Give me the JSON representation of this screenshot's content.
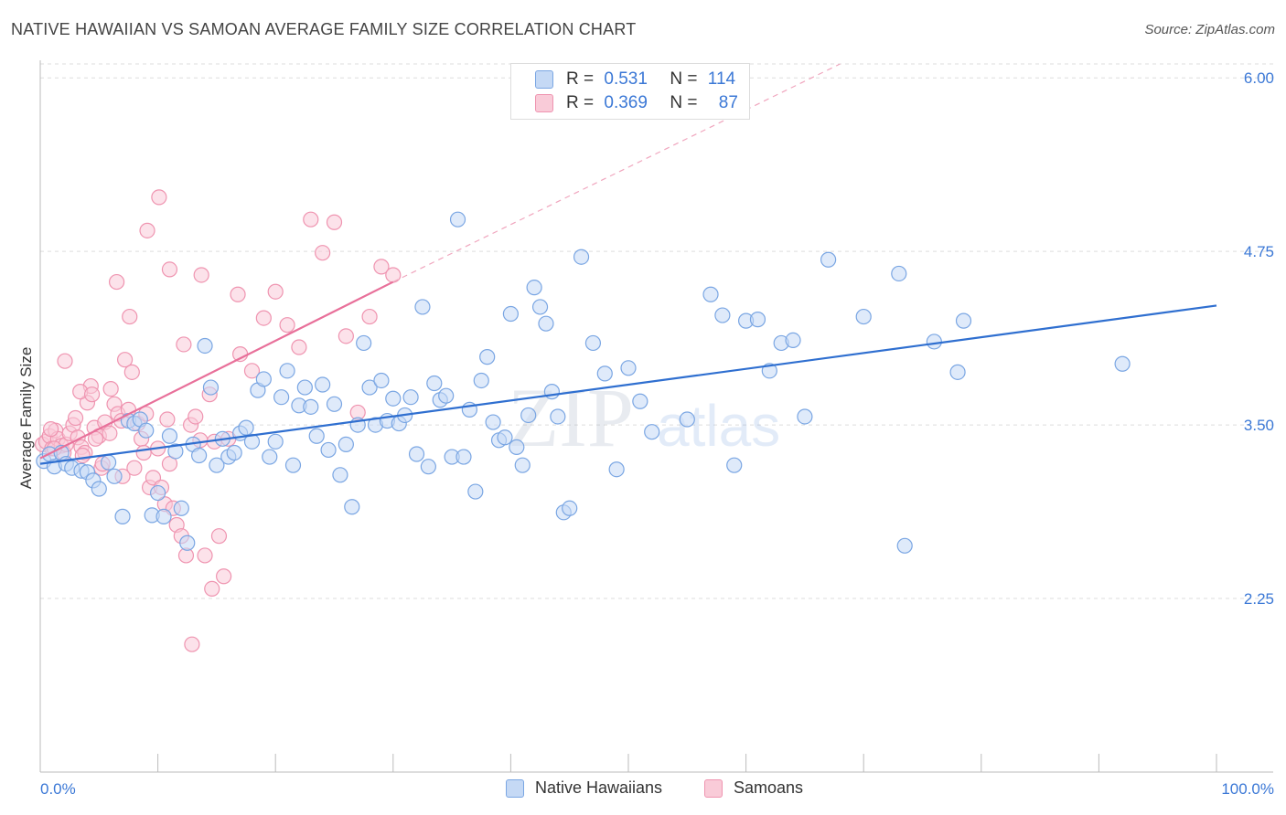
{
  "title": "NATIVE HAWAIIAN VS SAMOAN AVERAGE FAMILY SIZE CORRELATION CHART",
  "source": "Source: ZipAtlas.com",
  "watermark": {
    "zip": "ZIP",
    "atlas": "atlas"
  },
  "legend": {
    "r_label": "R =",
    "n_label": "N =",
    "rows": [
      {
        "r": "0.531",
        "n": "114"
      },
      {
        "r": "0.369",
        "n": "87"
      }
    ]
  },
  "bottom_legend": [
    "Native Hawaiians",
    "Samoans"
  ],
  "colors": {
    "blue_fill": "#c5d9f5",
    "blue_stroke": "#7aa6e3",
    "blue_line": "#2f6fd0",
    "pink_fill": "#f9cbd8",
    "pink_stroke": "#ef94b0",
    "pink_line": "#e8709a",
    "axis_text": "#3b78d6",
    "grid": "#dddddd"
  },
  "chart_data": {
    "type": "scatter",
    "title": "NATIVE HAWAIIAN VS SAMOAN AVERAGE FAMILY SIZE CORRELATION CHART",
    "xlabel": "",
    "ylabel": "Average Family Size",
    "xlim": [
      0,
      100
    ],
    "ylim": [
      1.0,
      6.1
    ],
    "x_tick_labels": [
      "0.0%",
      "100.0%"
    ],
    "y_ticks": [
      2.25,
      3.5,
      4.75,
      6.0
    ],
    "y_tick_labels": [
      "2.25",
      "3.50",
      "4.75",
      "6.00"
    ],
    "series": [
      {
        "name": "Native Hawaiians",
        "r": 0.531,
        "n": 114,
        "trend": {
          "x0": 0,
          "y0": 3.22,
          "x1": 100,
          "y1": 4.36
        },
        "points": [
          [
            0.3,
            3.24
          ],
          [
            0.8,
            3.29
          ],
          [
            1.2,
            3.2
          ],
          [
            1.8,
            3.3
          ],
          [
            2.2,
            3.22
          ],
          [
            2.7,
            3.19
          ],
          [
            3.5,
            3.17
          ],
          [
            4.0,
            3.16
          ],
          [
            4.5,
            3.1
          ],
          [
            5.0,
            3.04
          ],
          [
            5.8,
            3.23
          ],
          [
            6.3,
            3.13
          ],
          [
            7.0,
            2.84
          ],
          [
            7.5,
            3.53
          ],
          [
            8.0,
            3.51
          ],
          [
            8.5,
            3.54
          ],
          [
            9.0,
            3.46
          ],
          [
            9.5,
            2.85
          ],
          [
            10.0,
            3.01
          ],
          [
            10.5,
            2.84
          ],
          [
            11.0,
            3.42
          ],
          [
            11.5,
            3.31
          ],
          [
            12.0,
            2.9
          ],
          [
            12.5,
            2.65
          ],
          [
            13.0,
            3.36
          ],
          [
            13.5,
            3.28
          ],
          [
            14.0,
            4.07
          ],
          [
            14.5,
            3.77
          ],
          [
            15.0,
            3.21
          ],
          [
            15.5,
            3.4
          ],
          [
            16.0,
            3.27
          ],
          [
            16.5,
            3.3
          ],
          [
            17.0,
            3.44
          ],
          [
            17.5,
            3.48
          ],
          [
            18.0,
            3.38
          ],
          [
            18.5,
            3.75
          ],
          [
            19.0,
            3.83
          ],
          [
            19.5,
            3.27
          ],
          [
            20.0,
            3.38
          ],
          [
            20.5,
            3.7
          ],
          [
            21.0,
            3.89
          ],
          [
            21.5,
            3.21
          ],
          [
            22.0,
            3.64
          ],
          [
            22.5,
            3.77
          ],
          [
            23.0,
            3.63
          ],
          [
            23.5,
            3.42
          ],
          [
            24.0,
            3.79
          ],
          [
            24.5,
            3.32
          ],
          [
            25.0,
            3.65
          ],
          [
            25.5,
            3.14
          ],
          [
            26.0,
            3.36
          ],
          [
            26.5,
            2.91
          ],
          [
            27.0,
            3.5
          ],
          [
            27.5,
            4.09
          ],
          [
            28.0,
            3.77
          ],
          [
            28.5,
            3.5
          ],
          [
            29.0,
            3.82
          ],
          [
            29.5,
            3.53
          ],
          [
            30.0,
            3.69
          ],
          [
            30.5,
            3.51
          ],
          [
            31.0,
            3.57
          ],
          [
            31.5,
            3.7
          ],
          [
            32.0,
            3.29
          ],
          [
            32.5,
            4.35
          ],
          [
            33.0,
            3.2
          ],
          [
            33.5,
            3.8
          ],
          [
            34.0,
            3.68
          ],
          [
            34.5,
            3.71
          ],
          [
            35.0,
            3.27
          ],
          [
            35.5,
            4.98
          ],
          [
            36.0,
            3.27
          ],
          [
            36.5,
            3.61
          ],
          [
            37.0,
            3.02
          ],
          [
            37.5,
            3.82
          ],
          [
            38.0,
            3.99
          ],
          [
            38.5,
            3.52
          ],
          [
            39.0,
            3.39
          ],
          [
            39.5,
            3.41
          ],
          [
            40.0,
            4.3
          ],
          [
            40.5,
            3.34
          ],
          [
            41.0,
            3.21
          ],
          [
            41.5,
            3.57
          ],
          [
            42.0,
            4.49
          ],
          [
            42.5,
            4.35
          ],
          [
            43.0,
            4.23
          ],
          [
            43.5,
            3.74
          ],
          [
            44.0,
            3.56
          ],
          [
            44.5,
            2.87
          ],
          [
            45.0,
            2.9
          ],
          [
            46.0,
            4.71
          ],
          [
            47.0,
            4.09
          ],
          [
            48.0,
            3.87
          ],
          [
            49.0,
            3.18
          ],
          [
            50.0,
            3.91
          ],
          [
            51.0,
            3.67
          ],
          [
            52.0,
            3.45
          ],
          [
            55.0,
            3.54
          ],
          [
            57.0,
            4.44
          ],
          [
            58.0,
            4.29
          ],
          [
            59.0,
            3.21
          ],
          [
            60.0,
            4.25
          ],
          [
            61.0,
            4.26
          ],
          [
            62.0,
            3.89
          ],
          [
            63.0,
            4.09
          ],
          [
            64.0,
            4.11
          ],
          [
            65.0,
            3.56
          ],
          [
            67.0,
            4.69
          ],
          [
            70.0,
            4.28
          ],
          [
            73.0,
            4.59
          ],
          [
            73.5,
            2.63
          ],
          [
            76.0,
            4.1
          ],
          [
            78.0,
            3.88
          ],
          [
            78.5,
            4.25
          ],
          [
            92.0,
            3.94
          ]
        ]
      },
      {
        "name": "Samoans",
        "r": 0.369,
        "n": 87,
        "trend": {
          "x0": 0,
          "y0": 3.26,
          "x1": 30,
          "y1": 4.53
        },
        "trend_extended": {
          "x0": 30,
          "y0": 4.53,
          "x1": 68,
          "y1": 6.1
        },
        "points": [
          [
            0.2,
            3.36
          ],
          [
            0.5,
            3.38
          ],
          [
            0.8,
            3.42
          ],
          [
            1.0,
            3.33
          ],
          [
            1.3,
            3.46
          ],
          [
            1.5,
            3.4
          ],
          [
            1.8,
            3.35
          ],
          [
            2.0,
            3.3
          ],
          [
            2.2,
            3.36
          ],
          [
            2.5,
            3.44
          ],
          [
            2.8,
            3.5
          ],
          [
            3.0,
            3.55
          ],
          [
            3.2,
            3.41
          ],
          [
            3.5,
            3.34
          ],
          [
            3.8,
            3.3
          ],
          [
            4.0,
            3.66
          ],
          [
            4.3,
            3.78
          ],
          [
            4.6,
            3.48
          ],
          [
            5.0,
            3.42
          ],
          [
            5.2,
            3.19
          ],
          [
            5.5,
            3.52
          ],
          [
            6.0,
            3.76
          ],
          [
            6.3,
            3.65
          ],
          [
            6.6,
            3.58
          ],
          [
            6.9,
            3.53
          ],
          [
            7.2,
            3.97
          ],
          [
            7.5,
            3.61
          ],
          [
            7.8,
            3.88
          ],
          [
            8.0,
            3.19
          ],
          [
            8.3,
            3.51
          ],
          [
            8.6,
            3.4
          ],
          [
            9.0,
            3.58
          ],
          [
            9.3,
            3.05
          ],
          [
            9.6,
            3.12
          ],
          [
            10.0,
            3.33
          ],
          [
            10.3,
            3.05
          ],
          [
            10.6,
            2.93
          ],
          [
            11.0,
            3.22
          ],
          [
            11.3,
            2.9
          ],
          [
            11.6,
            2.78
          ],
          [
            12.0,
            2.7
          ],
          [
            12.4,
            2.56
          ],
          [
            12.8,
            3.5
          ],
          [
            13.2,
            3.56
          ],
          [
            13.6,
            3.39
          ],
          [
            14.0,
            2.56
          ],
          [
            14.4,
            3.72
          ],
          [
            14.8,
            3.38
          ],
          [
            15.2,
            2.7
          ],
          [
            15.6,
            2.41
          ],
          [
            16.0,
            3.4
          ],
          [
            17.0,
            4.01
          ],
          [
            18.0,
            3.89
          ],
          [
            19.0,
            4.27
          ],
          [
            20.0,
            4.46
          ],
          [
            21.0,
            4.22
          ],
          [
            22.0,
            4.06
          ],
          [
            23.0,
            4.98
          ],
          [
            24.0,
            4.74
          ],
          [
            25.0,
            4.96
          ],
          [
            26.0,
            4.14
          ],
          [
            27.0,
            3.59
          ],
          [
            28.0,
            4.28
          ],
          [
            29.0,
            4.64
          ],
          [
            30.0,
            4.58
          ],
          [
            1.2,
            3.33
          ],
          [
            3.4,
            3.74
          ],
          [
            4.7,
            3.4
          ],
          [
            5.9,
            3.44
          ],
          [
            7.0,
            3.13
          ],
          [
            8.8,
            3.3
          ],
          [
            10.8,
            3.54
          ],
          [
            12.2,
            4.08
          ],
          [
            13.7,
            4.58
          ],
          [
            16.8,
            4.44
          ],
          [
            9.1,
            4.9
          ],
          [
            6.5,
            4.53
          ],
          [
            11.0,
            4.62
          ],
          [
            2.1,
            3.96
          ],
          [
            3.6,
            3.28
          ],
          [
            0.9,
            3.47
          ],
          [
            4.4,
            3.72
          ],
          [
            5.3,
            3.22
          ],
          [
            7.6,
            4.28
          ],
          [
            12.9,
            1.92
          ],
          [
            14.6,
            2.32
          ],
          [
            10.1,
            5.14
          ]
        ]
      }
    ]
  }
}
